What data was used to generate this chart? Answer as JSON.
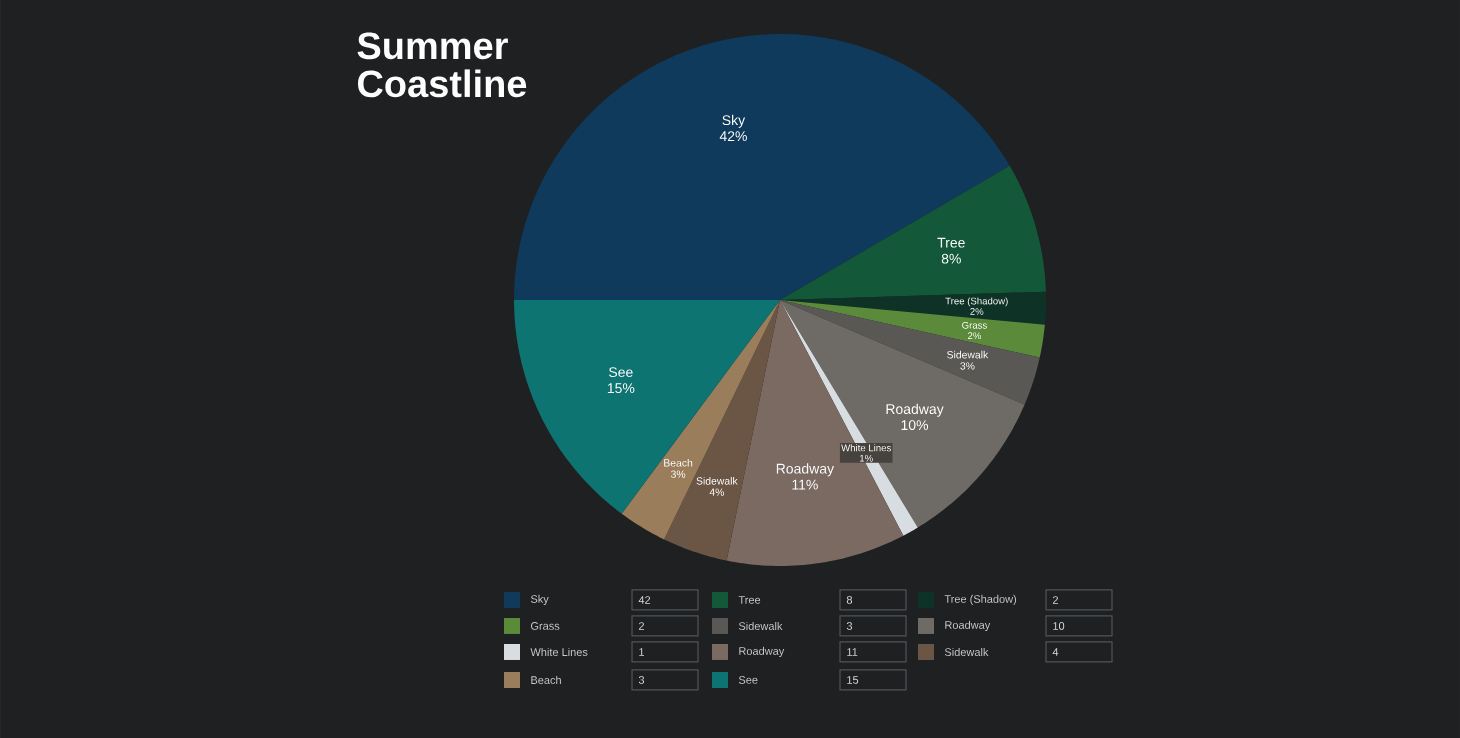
{
  "chart_data": {
    "type": "pie",
    "title": "Summer Coastline",
    "categories": [
      "Sky",
      "Tree",
      "Tree (Shadow)",
      "Grass",
      "Sidewalk",
      "Roadway",
      "White Lines",
      "Roadway",
      "Sidewalk",
      "Beach",
      "See"
    ],
    "values": [
      42,
      8,
      2,
      2,
      3,
      10,
      1,
      11,
      4,
      3,
      15
    ],
    "value_labels": [
      "42%",
      "8%",
      "2%",
      "2%",
      "3%",
      "10%",
      "1%",
      "11%",
      "4%",
      "3%",
      "15%"
    ],
    "colors": [
      "#0f3a5c",
      "#14583a",
      "#0e3326",
      "#5a8a3a",
      "#5a5855",
      "#6e6a65",
      "#d8dde2",
      "#7a6a62",
      "#6b5646",
      "#9a7e5c",
      "#0e7472"
    ],
    "annotations": [
      "42",
      "8",
      "2",
      "2",
      "3",
      "10",
      "1",
      "11",
      "4",
      "3",
      "15"
    ],
    "legend": "bottom"
  }
}
